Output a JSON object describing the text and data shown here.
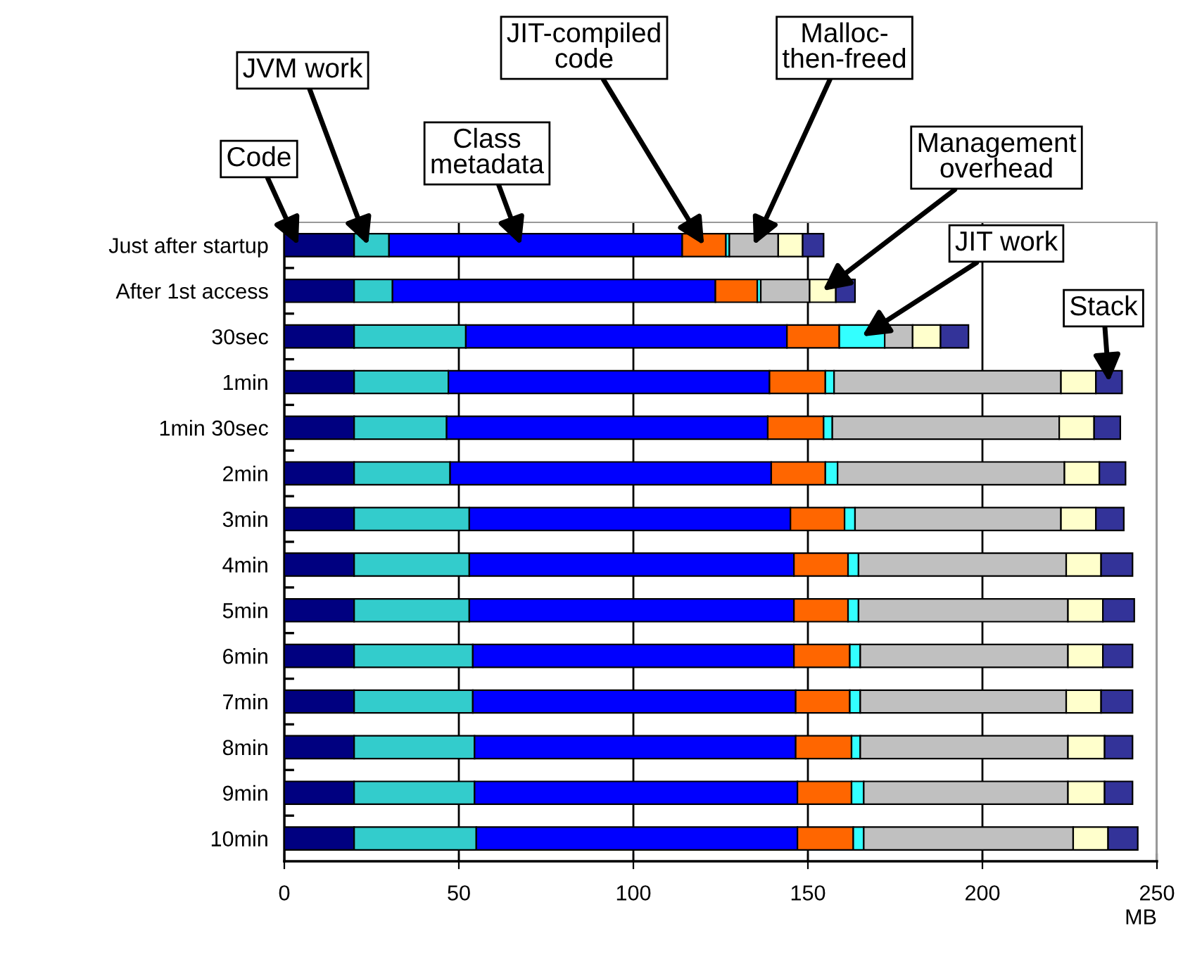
{
  "chart_data": {
    "type": "bar",
    "orientation": "horizontal",
    "stacked": true,
    "xlabel": "MB",
    "categories": [
      "Just after startup",
      "After 1st access",
      "30sec",
      "1min",
      "1min 30sec",
      "2min",
      "3min",
      "4min",
      "5min",
      "6min",
      "7min",
      "8min",
      "9min",
      "10min"
    ],
    "series": [
      {
        "name": "Code",
        "color": "#000080",
        "values": [
          20,
          20,
          20,
          20,
          20,
          20,
          20,
          20,
          20,
          20,
          20,
          20,
          20,
          20
        ]
      },
      {
        "name": "JVM work",
        "color": "#33cccc",
        "values": [
          10,
          11,
          32,
          27,
          26.5,
          27.5,
          33,
          33,
          33,
          34,
          34,
          34.5,
          34.5,
          35
        ]
      },
      {
        "name": "Class\nmetadata",
        "color": "#0000ff",
        "values": [
          84,
          92.5,
          92,
          92,
          92,
          92,
          92,
          93,
          93,
          92,
          92.5,
          92,
          92.5,
          92
        ]
      },
      {
        "name": "JIT-compiled\ncode",
        "color": "#ff6600",
        "values": [
          12.5,
          12,
          15,
          16,
          16,
          15.5,
          15.5,
          15.5,
          15.5,
          16,
          15.5,
          16,
          15.5,
          16
        ]
      },
      {
        "name": "JIT work",
        "color": "#33ffff",
        "values": [
          1,
          1,
          13,
          2.5,
          2.5,
          3.5,
          3,
          3,
          3,
          3,
          3,
          2.5,
          3.5,
          3
        ]
      },
      {
        "name": "Malloc-\nthen-freed",
        "color": "#c0c0c0",
        "values": [
          14,
          14,
          8,
          65,
          65,
          65,
          59,
          59.5,
          60,
          59.5,
          59,
          59.5,
          58.5,
          60
        ]
      },
      {
        "name": "Management\noverhead",
        "color": "#ffffcc",
        "values": [
          7,
          7.5,
          8,
          10,
          10,
          10,
          10,
          10,
          10,
          10,
          10,
          10.5,
          10.5,
          10
        ]
      },
      {
        "name": "Stack",
        "color": "#333399",
        "values": [
          6,
          5.5,
          8,
          7.5,
          7.5,
          7.5,
          8,
          9,
          9,
          8.5,
          9,
          8,
          8,
          8.5
        ]
      }
    ],
    "xlim": [
      0,
      250
    ],
    "xticks": [
      0,
      50,
      100,
      150,
      200,
      250
    ],
    "grid": "x"
  }
}
